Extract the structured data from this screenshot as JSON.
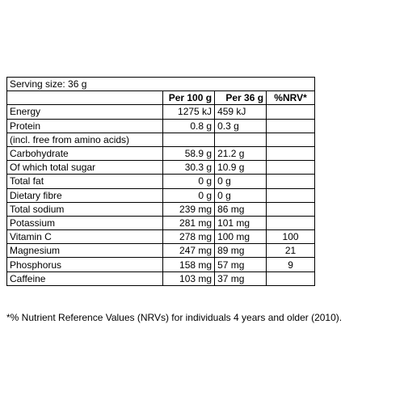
{
  "serving_size": "Serving size: 36 g",
  "headers": {
    "per100": "Per 100 g",
    "per36": "Per 36 g",
    "nrv": "%NRV*"
  },
  "rows": [
    {
      "name": "Energy",
      "per100": "1275 kJ",
      "per36": "459 kJ",
      "nrv": ""
    },
    {
      "name": "Protein",
      "per100": "0.8 g",
      "per36": "0.3 g",
      "nrv": ""
    },
    {
      "name": "(incl. free from amino acids)",
      "per100": "",
      "per36": "",
      "nrv": ""
    },
    {
      "name": "Carbohydrate",
      "per100": "58.9 g",
      "per36": "21.2 g",
      "nrv": ""
    },
    {
      "name": "Of which total sugar",
      "per100": "30.3 g",
      "per36": "10.9 g",
      "nrv": ""
    },
    {
      "name": "Total fat",
      "per100": "0 g",
      "per36": "0 g",
      "nrv": ""
    },
    {
      "name": "Dietary fibre",
      "per100": "0 g",
      "per36": "0 g",
      "nrv": ""
    },
    {
      "name": "Total sodium",
      "per100": "239 mg",
      "per36": "86 mg",
      "nrv": ""
    },
    {
      "name": "Potassium",
      "per100": "281 mg",
      "per36": "101 mg",
      "nrv": ""
    },
    {
      "name": "Vitamin C",
      "per100": "278 mg",
      "per36": "100 mg",
      "nrv": "100"
    },
    {
      "name": "Magnesium",
      "per100": "247 mg",
      "per36": "89 mg",
      "nrv": "21"
    },
    {
      "name": "Phosphorus",
      "per100": "158 mg",
      "per36": "57 mg",
      "nrv": "9"
    },
    {
      "name": "Caffeine",
      "per100": "103 mg",
      "per36": "37 mg",
      "nrv": ""
    }
  ],
  "footnote": "*% Nutrient Reference Values (NRVs) for individuals 4 years and older (2010)."
}
